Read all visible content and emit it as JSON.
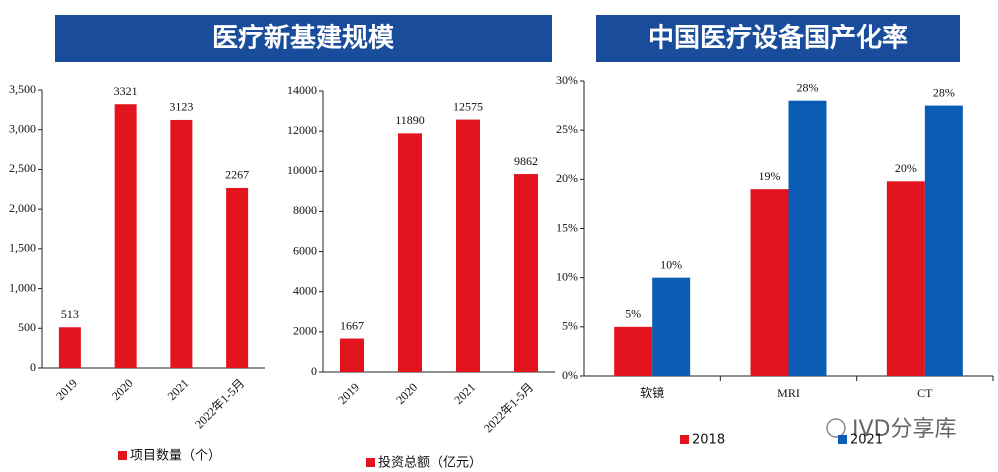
{
  "headers": [
    "医疗新基建规模",
    "中国医疗设备国产化率"
  ],
  "watermark": "IVD分享库",
  "chart_data": [
    {
      "type": "bar",
      "categories": [
        "2019",
        "2020",
        "2021",
        "2022年1-5月"
      ],
      "series": [
        {
          "name": "项目数量（个）",
          "color": "#e3141d",
          "values": [
            513,
            3321,
            3123,
            2267
          ]
        }
      ],
      "ylim": [
        0,
        3500
      ],
      "yticks": [
        0,
        500,
        {
          "value": 1000,
          "label": "1,000"
        },
        {
          "value": 1500,
          "label": "1,500"
        },
        {
          "value": 2000,
          "label": "2,000"
        },
        {
          "value": 2500,
          "label": "2,500"
        },
        {
          "value": 3000,
          "label": "3,000"
        },
        {
          "value": 3500,
          "label": "3,500"
        }
      ],
      "legend": "bottom"
    },
    {
      "type": "bar",
      "categories": [
        "2019",
        "2020",
        "2021",
        "2022年1-5月"
      ],
      "series": [
        {
          "name": "投资总额（亿元）",
          "color": "#e3141d",
          "values": [
            1667,
            11890,
            12575,
            9862
          ]
        }
      ],
      "ylim": [
        0,
        14000
      ],
      "yticks": [
        0,
        2000,
        4000,
        6000,
        8000,
        10000,
        12000,
        14000
      ],
      "legend": "bottom"
    },
    {
      "type": "bar",
      "categories": [
        "软镜",
        "MRI",
        "CT"
      ],
      "series": [
        {
          "name": "2018",
          "color": "#e3141d",
          "values": [
            5,
            19,
            19.8
          ],
          "value_labels": [
            "5%",
            "19%",
            "20%"
          ]
        },
        {
          "name": "2021",
          "color": "#0b5cb5",
          "values": [
            10,
            28,
            27.5
          ],
          "value_labels": [
            "10%",
            "28%",
            "28%"
          ]
        }
      ],
      "ylim": [
        0,
        30
      ],
      "yticks": [
        {
          "value": 0,
          "label": "0%"
        },
        {
          "value": 5,
          "label": "5%"
        },
        {
          "value": 10,
          "label": "10%"
        },
        {
          "value": 15,
          "label": "15%"
        },
        {
          "value": 20,
          "label": "20%"
        },
        {
          "value": 25,
          "label": "25%"
        },
        {
          "value": 30,
          "label": "30%"
        }
      ],
      "legend": "bottom"
    }
  ]
}
